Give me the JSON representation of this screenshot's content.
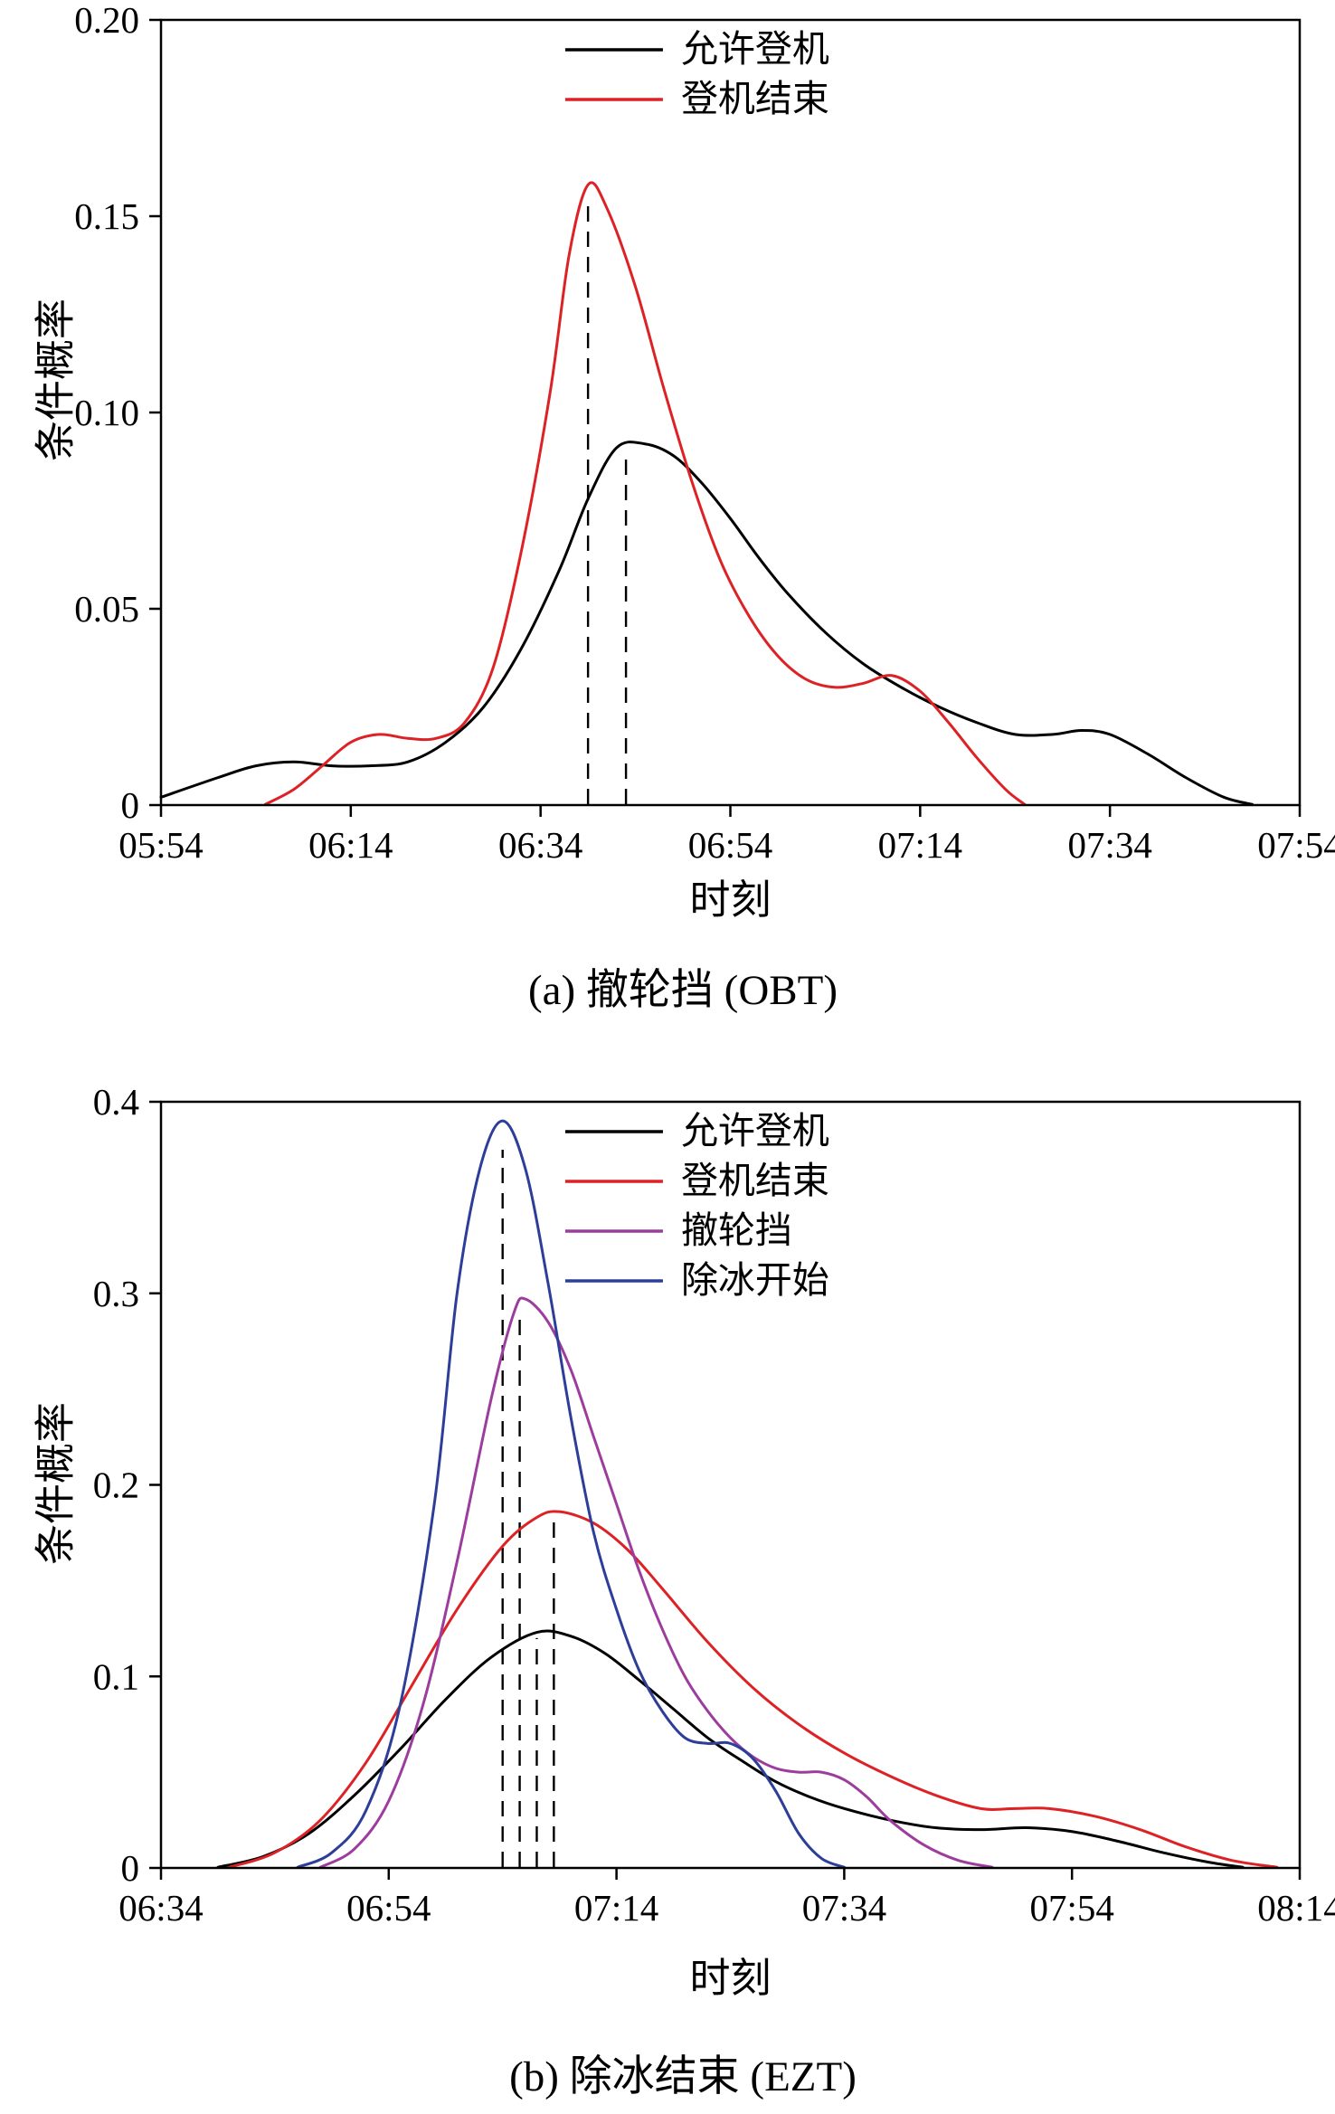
{
  "figure": {
    "background": "#ffffff",
    "description": "Two stacked kernel-density probability plots"
  },
  "chart_data": {
    "see": "charts"
  },
  "charts": [
    {
      "id": "obt",
      "type": "line",
      "caption": "(a) 撤轮挡 (OBT)",
      "xlabel": "时刻",
      "ylabel": "条件概率",
      "x_tick_labels": [
        "05:54",
        "06:14",
        "06:34",
        "06:54",
        "07:14",
        "07:34",
        "07:54"
      ],
      "x_range": [
        0,
        120
      ],
      "x_unit": "minutes after 05:54",
      "ylim": [
        0,
        0.2
      ],
      "y_ticks": [
        0,
        0.05,
        0.1,
        0.15,
        0.2
      ],
      "y_tick_labels": [
        "0",
        "0.05",
        "0.10",
        "0.15",
        "0.20"
      ],
      "grid": false,
      "legend_position": "top-right-inside",
      "series": [
        {
          "name": "允许登机",
          "color": "#000000",
          "points": [
            [
              0,
              0.002
            ],
            [
              6,
              0.007
            ],
            [
              10,
              0.01
            ],
            [
              14,
              0.011
            ],
            [
              18,
              0.01
            ],
            [
              22,
              0.01
            ],
            [
              26,
              0.011
            ],
            [
              30,
              0.016
            ],
            [
              34,
              0.025
            ],
            [
              38,
              0.04
            ],
            [
              42,
              0.06
            ],
            [
              45,
              0.078
            ],
            [
              48,
              0.091
            ],
            [
              51,
              0.092
            ],
            [
              54,
              0.089
            ],
            [
              57,
              0.082
            ],
            [
              60,
              0.073
            ],
            [
              63,
              0.063
            ],
            [
              66,
              0.054
            ],
            [
              70,
              0.044
            ],
            [
              74,
              0.036
            ],
            [
              78,
              0.03
            ],
            [
              82,
              0.025
            ],
            [
              86,
              0.021
            ],
            [
              90,
              0.018
            ],
            [
              94,
              0.018
            ],
            [
              97,
              0.019
            ],
            [
              100,
              0.018
            ],
            [
              104,
              0.013
            ],
            [
              108,
              0.007
            ],
            [
              112,
              0.002
            ],
            [
              115,
              0.0
            ]
          ]
        },
        {
          "name": "登机结束",
          "color": "#dd2226",
          "points": [
            [
              11,
              0.0
            ],
            [
              14,
              0.004
            ],
            [
              17,
              0.01
            ],
            [
              20,
              0.016
            ],
            [
              23,
              0.018
            ],
            [
              26,
              0.017
            ],
            [
              29,
              0.017
            ],
            [
              32,
              0.021
            ],
            [
              35,
              0.035
            ],
            [
              38,
              0.065
            ],
            [
              41,
              0.105
            ],
            [
              43,
              0.14
            ],
            [
              45,
              0.158
            ],
            [
              47,
              0.152
            ],
            [
              50,
              0.132
            ],
            [
              53,
              0.106
            ],
            [
              56,
              0.082
            ],
            [
              59,
              0.062
            ],
            [
              62,
              0.048
            ],
            [
              65,
              0.038
            ],
            [
              68,
              0.032
            ],
            [
              71,
              0.03
            ],
            [
              74,
              0.031
            ],
            [
              77,
              0.033
            ],
            [
              80,
              0.029
            ],
            [
              83,
              0.021
            ],
            [
              86,
              0.012
            ],
            [
              89,
              0.004
            ],
            [
              91,
              0.0
            ]
          ]
        }
      ],
      "dashed_marker_lines": [
        {
          "x": 45,
          "y_top": 0.155
        },
        {
          "x": 49,
          "y_top": 0.09
        }
      ]
    },
    {
      "id": "ezt",
      "type": "line",
      "caption": "(b) 除冰结束 (EZT)",
      "xlabel": "时刻",
      "ylabel": "条件概率",
      "x_tick_labels": [
        "06:34",
        "06:54",
        "07:14",
        "07:34",
        "07:54",
        "08:14"
      ],
      "x_range": [
        0,
        100
      ],
      "x_unit": "minutes after 06:34",
      "ylim": [
        0,
        0.4
      ],
      "y_ticks": [
        0,
        0.1,
        0.2,
        0.3,
        0.4
      ],
      "y_tick_labels": [
        "0",
        "0.1",
        "0.2",
        "0.3",
        "0.4"
      ],
      "grid": false,
      "legend_position": "top-right-inside",
      "series": [
        {
          "name": "允许登机",
          "color": "#000000",
          "points": [
            [
              5,
              0.0
            ],
            [
              9,
              0.006
            ],
            [
              13,
              0.018
            ],
            [
              17,
              0.038
            ],
            [
              21,
              0.062
            ],
            [
              25,
              0.088
            ],
            [
              29,
              0.11
            ],
            [
              33,
              0.123
            ],
            [
              36,
              0.121
            ],
            [
              39,
              0.112
            ],
            [
              42,
              0.098
            ],
            [
              45,
              0.083
            ],
            [
              48,
              0.068
            ],
            [
              51,
              0.056
            ],
            [
              54,
              0.045
            ],
            [
              57,
              0.037
            ],
            [
              60,
              0.031
            ],
            [
              64,
              0.025
            ],
            [
              68,
              0.021
            ],
            [
              72,
              0.02
            ],
            [
              76,
              0.021
            ],
            [
              80,
              0.019
            ],
            [
              84,
              0.014
            ],
            [
              88,
              0.008
            ],
            [
              92,
              0.003
            ],
            [
              95,
              0.0
            ]
          ]
        },
        {
          "name": "登机结束",
          "color": "#dd2226",
          "points": [
            [
              6,
              0.0
            ],
            [
              10,
              0.008
            ],
            [
              14,
              0.025
            ],
            [
              18,
              0.055
            ],
            [
              22,
              0.095
            ],
            [
              26,
              0.135
            ],
            [
              30,
              0.168
            ],
            [
              33,
              0.183
            ],
            [
              35,
              0.186
            ],
            [
              38,
              0.18
            ],
            [
              41,
              0.166
            ],
            [
              44,
              0.146
            ],
            [
              48,
              0.118
            ],
            [
              52,
              0.094
            ],
            [
              56,
              0.075
            ],
            [
              60,
              0.06
            ],
            [
              64,
              0.048
            ],
            [
              68,
              0.038
            ],
            [
              72,
              0.031
            ],
            [
              75,
              0.031
            ],
            [
              78,
              0.031
            ],
            [
              82,
              0.027
            ],
            [
              86,
              0.02
            ],
            [
              90,
              0.011
            ],
            [
              94,
              0.004
            ],
            [
              98,
              0.0
            ]
          ]
        },
        {
          "name": "撤轮挡",
          "color": "#9c3d9e",
          "points": [
            [
              14,
              0.0
            ],
            [
              17,
              0.01
            ],
            [
              20,
              0.035
            ],
            [
              23,
              0.085
            ],
            [
              26,
              0.16
            ],
            [
              29,
              0.245
            ],
            [
              31,
              0.29
            ],
            [
              32,
              0.297
            ],
            [
              34,
              0.285
            ],
            [
              36,
              0.26
            ],
            [
              38,
              0.225
            ],
            [
              40,
              0.19
            ],
            [
              42,
              0.155
            ],
            [
              44,
              0.125
            ],
            [
              46,
              0.1
            ],
            [
              48,
              0.082
            ],
            [
              50,
              0.068
            ],
            [
              52,
              0.058
            ],
            [
              54,
              0.052
            ],
            [
              56,
              0.05
            ],
            [
              58,
              0.05
            ],
            [
              60,
              0.046
            ],
            [
              62,
              0.037
            ],
            [
              64,
              0.025
            ],
            [
              67,
              0.012
            ],
            [
              70,
              0.004
            ],
            [
              73,
              0.0
            ]
          ]
        },
        {
          "name": "除冰开始",
          "color": "#2d3e99",
          "points": [
            [
              12,
              0.0
            ],
            [
              15,
              0.008
            ],
            [
              18,
              0.03
            ],
            [
              21,
              0.085
            ],
            [
              24,
              0.19
            ],
            [
              26,
              0.3
            ],
            [
              28,
              0.365
            ],
            [
              30,
              0.39
            ],
            [
              32,
              0.365
            ],
            [
              34,
              0.305
            ],
            [
              36,
              0.235
            ],
            [
              38,
              0.175
            ],
            [
              40,
              0.135
            ],
            [
              42,
              0.103
            ],
            [
              44,
              0.082
            ],
            [
              46,
              0.068
            ],
            [
              48,
              0.065
            ],
            [
              50,
              0.065
            ],
            [
              52,
              0.057
            ],
            [
              54,
              0.04
            ],
            [
              56,
              0.018
            ],
            [
              58,
              0.005
            ],
            [
              60,
              0.0
            ]
          ]
        }
      ],
      "dashed_marker_lines": [
        {
          "x": 30,
          "y_top": 0.375
        },
        {
          "x": 31.5,
          "y_top": 0.29
        },
        {
          "x": 33,
          "y_top": 0.12
        },
        {
          "x": 34.5,
          "y_top": 0.182
        }
      ]
    }
  ]
}
